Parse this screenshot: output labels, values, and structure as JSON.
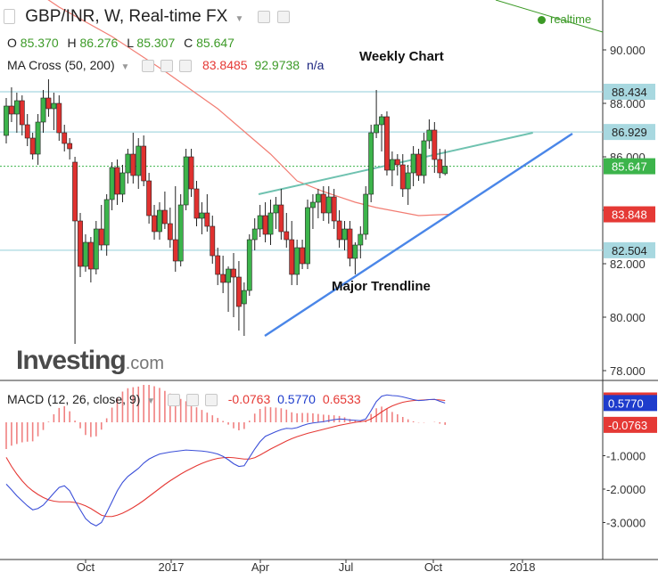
{
  "header": {
    "title": "GBP/INR, W, Real-time FX",
    "ohlc": [
      {
        "label": "O",
        "value": "85.370"
      },
      {
        "label": "H",
        "value": "86.276"
      },
      {
        "label": "L",
        "value": "85.307"
      },
      {
        "label": "C",
        "value": "85.647"
      }
    ]
  },
  "indicator": {
    "name": "MA Cross (50, 200)",
    "values": [
      {
        "text": "83.8485",
        "color": "#e53935"
      },
      {
        "text": "92.9738",
        "color": "#3c9a27"
      },
      {
        "text": "n/a",
        "color": "#1a237e"
      }
    ]
  },
  "macd_header": {
    "name": "MACD (12, 26, close, 9)",
    "values": [
      {
        "text": "-0.0763",
        "color": "#e53935"
      },
      {
        "text": "0.5770",
        "color": "#1e3ccc"
      },
      {
        "text": "0.6533",
        "color": "#e53935"
      }
    ]
  },
  "status": {
    "realtime": "realtime"
  },
  "branding": {
    "logo": "Investing",
    "logo_suffix": ".com"
  },
  "annotations": {
    "weekly": "Weekly Chart",
    "trendline": "Major Trendline"
  },
  "colors": {
    "up": "#3cb44b",
    "down": "#e0312f",
    "ma50": "#f27d73",
    "trend": "#4a86e8",
    "channel": "#6fc2b0",
    "level": "#a8d8e0",
    "macd_line": "#3b4fd8",
    "signal_line": "#e53935",
    "hist": "#f08080"
  },
  "chart_data": [
    {
      "type": "candlestick",
      "title": "GBP/INR, W, Real-time FX",
      "x_ticks": [
        "Oct",
        "2017",
        "Apr",
        "Jul",
        "Oct",
        "2018"
      ],
      "y_ticks": [
        "78.000",
        "80.000",
        "82.000",
        "84.000",
        "86.000",
        "88.000",
        "90.000"
      ],
      "ylim": [
        77.5,
        91.5
      ],
      "price_labels": [
        {
          "value": 88.434,
          "text": "88.434",
          "bg": "#a8d8e0",
          "fg": "#222222"
        },
        {
          "value": 86.929,
          "text": "86.929",
          "bg": "#a8d8e0",
          "fg": "#222222"
        },
        {
          "value": 85.647,
          "text": "85.647",
          "bg": "#3cb44b",
          "fg": "#ffffff"
        },
        {
          "value": 83.848,
          "text": "83.848",
          "bg": "#e53935",
          "fg": "#ffffff"
        },
        {
          "value": 82.504,
          "text": "82.504",
          "bg": "#a8d8e0",
          "fg": "#222222"
        }
      ],
      "levels": [
        88.434,
        86.929,
        82.504
      ],
      "current_price": 85.647,
      "candles": [
        [
          86.8,
          88.2,
          86.5,
          87.9
        ],
        [
          87.9,
          88.6,
          87.3,
          87.6
        ],
        [
          87.6,
          88.4,
          86.9,
          88.1
        ],
        [
          88.1,
          88.3,
          86.8,
          87.2
        ],
        [
          87.2,
          87.6,
          86.4,
          86.7
        ],
        [
          86.7,
          86.9,
          85.9,
          86.1
        ],
        [
          86.1,
          87.6,
          85.7,
          87.3
        ],
        [
          87.3,
          88.5,
          86.9,
          88.2
        ],
        [
          88.2,
          88.9,
          87.5,
          87.8
        ],
        [
          87.8,
          88.4,
          87.0,
          88.0
        ],
        [
          88.0,
          88.3,
          86.6,
          86.9
        ],
        [
          86.9,
          87.2,
          86.2,
          86.5
        ],
        [
          86.5,
          86.7,
          85.9,
          86.3
        ],
        [
          85.8,
          86.0,
          79.0,
          83.6
        ],
        [
          83.6,
          83.9,
          81.5,
          81.9
        ],
        [
          81.9,
          83.1,
          81.7,
          82.8
        ],
        [
          82.8,
          83.0,
          81.3,
          81.8
        ],
        [
          81.8,
          83.6,
          81.6,
          83.3
        ],
        [
          83.3,
          84.2,
          82.5,
          82.7
        ],
        [
          82.7,
          84.6,
          82.3,
          84.4
        ],
        [
          84.4,
          85.8,
          84.0,
          85.6
        ],
        [
          85.6,
          85.9,
          84.2,
          84.6
        ],
        [
          84.6,
          85.7,
          84.3,
          85.4
        ],
        [
          85.4,
          86.3,
          85.0,
          86.1
        ],
        [
          86.1,
          86.9,
          85.0,
          85.3
        ],
        [
          85.3,
          86.7,
          84.8,
          86.4
        ],
        [
          86.4,
          86.8,
          84.9,
          85.1
        ],
        [
          85.1,
          85.4,
          83.5,
          83.8
        ],
        [
          83.8,
          84.2,
          82.9,
          83.2
        ],
        [
          83.2,
          84.3,
          82.9,
          84.0
        ],
        [
          84.0,
          84.7,
          83.3,
          83.5
        ],
        [
          83.5,
          84.1,
          82.6,
          82.9
        ],
        [
          82.9,
          84.9,
          81.7,
          82.1
        ],
        [
          82.1,
          84.6,
          81.9,
          84.2
        ],
        [
          84.2,
          86.3,
          84.0,
          86.0
        ],
        [
          86.0,
          86.3,
          84.5,
          84.8
        ],
        [
          84.8,
          85.1,
          83.4,
          83.7
        ],
        [
          83.7,
          84.3,
          83.1,
          83.9
        ],
        [
          83.9,
          84.6,
          83.2,
          83.4
        ],
        [
          83.4,
          83.8,
          82.0,
          82.3
        ],
        [
          82.3,
          82.6,
          81.2,
          81.6
        ],
        [
          81.6,
          82.3,
          80.9,
          81.3
        ],
        [
          81.3,
          81.9,
          80.2,
          81.8
        ],
        [
          81.8,
          82.4,
          80.0,
          81.5
        ],
        [
          81.5,
          82.1,
          79.5,
          80.4
        ],
        [
          80.5,
          81.3,
          79.3,
          81.0
        ],
        [
          81.0,
          83.1,
          80.8,
          82.9
        ],
        [
          82.9,
          83.7,
          82.5,
          83.3
        ],
        [
          83.3,
          84.2,
          83.0,
          83.8
        ],
        [
          83.8,
          84.3,
          82.8,
          83.1
        ],
        [
          83.1,
          84.4,
          82.7,
          83.9
        ],
        [
          83.9,
          84.5,
          83.3,
          84.2
        ],
        [
          84.2,
          84.8,
          82.9,
          83.2
        ],
        [
          83.2,
          83.9,
          82.6,
          82.9
        ],
        [
          82.9,
          83.6,
          81.2,
          81.6
        ],
        [
          81.6,
          82.9,
          81.2,
          82.6
        ],
        [
          82.6,
          82.9,
          81.8,
          82.0
        ],
        [
          82.0,
          84.4,
          81.8,
          84.1
        ],
        [
          84.1,
          84.6,
          83.3,
          84.3
        ],
        [
          84.3,
          84.8,
          83.7,
          84.6
        ],
        [
          84.6,
          84.9,
          83.6,
          83.9
        ],
        [
          83.9,
          84.9,
          83.5,
          84.5
        ],
        [
          84.5,
          84.8,
          83.3,
          83.6
        ],
        [
          83.6,
          84.0,
          82.6,
          82.9
        ],
        [
          82.9,
          83.6,
          82.5,
          83.3
        ],
        [
          83.3,
          83.6,
          81.9,
          82.2
        ],
        [
          82.2,
          82.8,
          81.6,
          82.7
        ],
        [
          82.7,
          83.4,
          82.2,
          83.1
        ],
        [
          83.1,
          84.9,
          82.9,
          84.6
        ],
        [
          84.6,
          87.2,
          84.3,
          86.9
        ],
        [
          86.9,
          88.5,
          86.7,
          87.2
        ],
        [
          87.2,
          87.6,
          86.2,
          87.5
        ],
        [
          87.5,
          87.7,
          85.3,
          85.5
        ],
        [
          85.5,
          86.2,
          84.9,
          85.9
        ],
        [
          85.9,
          86.1,
          85.3,
          85.7
        ],
        [
          85.7,
          86.1,
          84.5,
          84.8
        ],
        [
          84.8,
          85.7,
          84.2,
          85.4
        ],
        [
          85.4,
          86.4,
          84.9,
          86.1
        ],
        [
          86.1,
          86.3,
          85.1,
          85.3
        ],
        [
          85.3,
          86.9,
          85.0,
          86.6
        ],
        [
          86.6,
          87.4,
          86.3,
          87.0
        ],
        [
          87.0,
          87.3,
          85.4,
          85.9
        ],
        [
          85.9,
          86.3,
          85.2,
          85.4
        ],
        [
          85.37,
          86.276,
          85.307,
          85.647
        ]
      ],
      "ma50": [
        [
          1,
          92.8
        ],
        [
          10,
          91.6
        ],
        [
          20,
          90.5
        ],
        [
          30,
          89.2
        ],
        [
          40,
          87.8
        ],
        [
          50,
          86.1
        ],
        [
          55,
          85.1
        ],
        [
          60,
          84.7
        ],
        [
          66,
          84.3
        ],
        [
          70,
          84.1
        ],
        [
          78,
          83.8
        ],
        [
          84,
          83.85
        ]
      ],
      "channel_line": [
        [
          14,
          84.6
        ],
        [
          76,
          86.9
        ]
      ],
      "trend_line": [
        [
          38,
          79.4
        ],
        [
          92,
          87.0
        ]
      ]
    },
    {
      "type": "macd",
      "title": "MACD (12, 26, close, 9)",
      "y_ticks": [
        "-1.0000",
        "-2.0000",
        "-3.0000"
      ],
      "ylim": [
        -3.3,
        1.3
      ],
      "price_labels": [
        {
          "value": 0.6533,
          "text": "0.6533",
          "bg": "#e53935",
          "fg": "#ffffff"
        },
        {
          "value": 0.577,
          "text": "0.5770",
          "bg": "#1e3ccc",
          "fg": "#ffffff"
        },
        {
          "value": -0.0763,
          "text": "-0.0763",
          "bg": "#e53935",
          "fg": "#ffffff"
        }
      ],
      "macd_line": [
        -1.85,
        -2.02,
        -2.2,
        -2.35,
        -2.5,
        -2.62,
        -2.58,
        -2.48,
        -2.3,
        -2.12,
        -1.95,
        -1.9,
        -2.05,
        -2.35,
        -2.62,
        -2.88,
        -3.02,
        -3.1,
        -3.0,
        -2.7,
        -2.38,
        -2.05,
        -1.8,
        -1.62,
        -1.5,
        -1.38,
        -1.22,
        -1.1,
        -1.02,
        -0.95,
        -0.92,
        -0.89,
        -0.87,
        -0.85,
        -0.83,
        -0.84,
        -0.85,
        -0.86,
        -0.88,
        -0.91,
        -0.95,
        -1.02,
        -1.12,
        -1.24,
        -1.32,
        -1.3,
        -1.05,
        -0.8,
        -0.58,
        -0.42,
        -0.35,
        -0.28,
        -0.22,
        -0.18,
        -0.19,
        -0.16,
        -0.1,
        -0.05,
        -0.02,
        0.0,
        0.02,
        0.05,
        0.08,
        0.1,
        0.09,
        0.07,
        0.06,
        0.05,
        0.1,
        0.35,
        0.62,
        0.78,
        0.82,
        0.8,
        0.79,
        0.76,
        0.72,
        0.68,
        0.65,
        0.66,
        0.68,
        0.69,
        0.63,
        0.577
      ],
      "signal_line": [
        -1.05,
        -1.32,
        -1.55,
        -1.75,
        -1.92,
        -2.05,
        -2.16,
        -2.25,
        -2.32,
        -2.36,
        -2.38,
        -2.38,
        -2.38,
        -2.4,
        -2.44,
        -2.5,
        -2.58,
        -2.68,
        -2.78,
        -2.82,
        -2.82,
        -2.78,
        -2.72,
        -2.64,
        -2.55,
        -2.45,
        -2.34,
        -2.22,
        -2.1,
        -1.98,
        -1.86,
        -1.75,
        -1.65,
        -1.55,
        -1.46,
        -1.38,
        -1.3,
        -1.23,
        -1.17,
        -1.12,
        -1.08,
        -1.06,
        -1.05,
        -1.06,
        -1.08,
        -1.1,
        -1.1,
        -1.06,
        -0.98,
        -0.89,
        -0.8,
        -0.72,
        -0.64,
        -0.56,
        -0.49,
        -0.43,
        -0.38,
        -0.33,
        -0.29,
        -0.25,
        -0.21,
        -0.17,
        -0.13,
        -0.09,
        -0.06,
        -0.03,
        0.0,
        0.02,
        0.04,
        0.1,
        0.2,
        0.31,
        0.41,
        0.49,
        0.55,
        0.6,
        0.63,
        0.65,
        0.66,
        0.67,
        0.68,
        0.68,
        0.67,
        0.6533
      ]
    }
  ]
}
